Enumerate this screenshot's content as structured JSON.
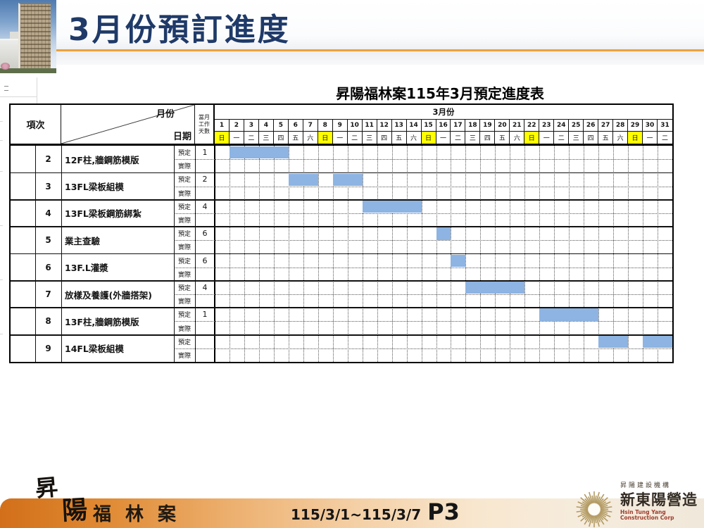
{
  "slide": {
    "title": "3月份預訂進度"
  },
  "sheet": {
    "table_title": "昇陽福林案115年3月預定進度表"
  },
  "table": {
    "header": {
      "item_col": "項次",
      "diag_top": "月份",
      "diag_bottom": "日期",
      "workdays_lines": [
        "當月",
        "工作",
        "天數"
      ],
      "month_band": "3月份",
      "days": [
        1,
        2,
        3,
        4,
        5,
        6,
        7,
        8,
        9,
        10,
        11,
        12,
        13,
        14,
        15,
        16,
        17,
        18,
        19,
        20,
        21,
        22,
        23,
        24,
        25,
        26,
        27,
        28,
        29,
        30,
        31
      ],
      "weekdays": [
        "日",
        "一",
        "二",
        "三",
        "四",
        "五",
        "六",
        "日",
        "一",
        "二",
        "三",
        "四",
        "五",
        "六",
        "日",
        "一",
        "二",
        "三",
        "四",
        "五",
        "六",
        "日",
        "一",
        "二",
        "三",
        "四",
        "五",
        "六",
        "日",
        "一",
        "二"
      ],
      "sunday_char": "日",
      "sunday_bg": "#ffff00"
    },
    "subrow_labels": {
      "planned": "預定",
      "actual": "實際"
    },
    "bar_color": "#8db4e2",
    "rows": [
      {
        "no": "2",
        "task": "12F柱,牆鋼筋模版",
        "planned_value": "1",
        "bar_days": [
          2,
          3,
          4,
          5
        ],
        "actual_days": []
      },
      {
        "no": "3",
        "task": "13FL梁板組模",
        "planned_value": "2",
        "bar_days": [
          6,
          7,
          9,
          10
        ],
        "actual_days": []
      },
      {
        "no": "4",
        "task": "13FL梁板鋼筋綁紮",
        "planned_value": "4",
        "bar_days": [
          11,
          12,
          13,
          14
        ],
        "actual_days": []
      },
      {
        "no": "5",
        "task": "業主查驗",
        "planned_value": "6",
        "bar_days": [
          16
        ],
        "actual_days": []
      },
      {
        "no": "6",
        "task": "13F.L灌漿",
        "planned_value": "6",
        "bar_days": [
          17
        ],
        "actual_days": []
      },
      {
        "no": "7",
        "task": "放樣及養護(外牆搭架)",
        "planned_value": "4",
        "bar_days": [
          18,
          19,
          20,
          21
        ],
        "actual_days": []
      },
      {
        "no": "8",
        "task": "13F柱,牆鋼筋模版",
        "planned_value": "1",
        "bar_days": [
          23,
          24,
          25,
          26
        ],
        "actual_days": []
      },
      {
        "no": "9",
        "task": "14FL梁板組模",
        "planned_value": "",
        "bar_days": [
          27,
          28,
          30,
          31
        ],
        "actual_days": []
      }
    ]
  },
  "footer": {
    "logo_chars": [
      "昇",
      "陽"
    ],
    "project": "福林案",
    "date_range": "115/3/1~115/3/7",
    "page": "P3",
    "company_group": "昇陽建設機構",
    "company": "新東陽營造",
    "company_en": "Hsin Tung Yang Construction Corp",
    "accent_orange": "#d26f1a",
    "logo_gold": "#b29a62"
  },
  "chart_data": {
    "type": "gantt",
    "title": "昇陽福林案115年3月預定進度表",
    "month_label": "3月份",
    "x": [
      1,
      2,
      3,
      4,
      5,
      6,
      7,
      8,
      9,
      10,
      11,
      12,
      13,
      14,
      15,
      16,
      17,
      18,
      19,
      20,
      21,
      22,
      23,
      24,
      25,
      26,
      27,
      28,
      29,
      30,
      31
    ],
    "weekday_labels": [
      "日",
      "一",
      "二",
      "三",
      "四",
      "五",
      "六",
      "日",
      "一",
      "二",
      "三",
      "四",
      "五",
      "六",
      "日",
      "一",
      "二",
      "三",
      "四",
      "五",
      "六",
      "日",
      "一",
      "二",
      "三",
      "四",
      "五",
      "六",
      "日",
      "一",
      "二"
    ],
    "sundays_highlighted": [
      1,
      8,
      15,
      22,
      29
    ],
    "series_labels": {
      "planned": "預定",
      "actual": "實際"
    },
    "tasks": [
      {
        "no": 2,
        "name": "12F柱,牆鋼筋模版",
        "monthly_workdays": "1",
        "planned_days": [
          2,
          3,
          4,
          5
        ],
        "actual_days": []
      },
      {
        "no": 3,
        "name": "13FL梁板組模",
        "monthly_workdays": "2",
        "planned_days": [
          6,
          7,
          9,
          10
        ],
        "actual_days": []
      },
      {
        "no": 4,
        "name": "13FL梁板鋼筋綁紮",
        "monthly_workdays": "4",
        "planned_days": [
          11,
          12,
          13,
          14
        ],
        "actual_days": []
      },
      {
        "no": 5,
        "name": "業主查驗",
        "monthly_workdays": "6",
        "planned_days": [
          16
        ],
        "actual_days": []
      },
      {
        "no": 6,
        "name": "13F.L灌漿",
        "monthly_workdays": "6",
        "planned_days": [
          17
        ],
        "actual_days": []
      },
      {
        "no": 7,
        "name": "放樣及養護(外牆搭架)",
        "monthly_workdays": "4",
        "planned_days": [
          18,
          19,
          20,
          21
        ],
        "actual_days": []
      },
      {
        "no": 8,
        "name": "13F柱,牆鋼筋模版",
        "monthly_workdays": "1",
        "planned_days": [
          23,
          24,
          25,
          26
        ],
        "actual_days": []
      },
      {
        "no": 9,
        "name": "14FL梁板組模",
        "monthly_workdays": "",
        "planned_days": [
          27,
          28,
          30,
          31
        ],
        "actual_days": []
      }
    ],
    "bar_color": "#8db4e2"
  }
}
